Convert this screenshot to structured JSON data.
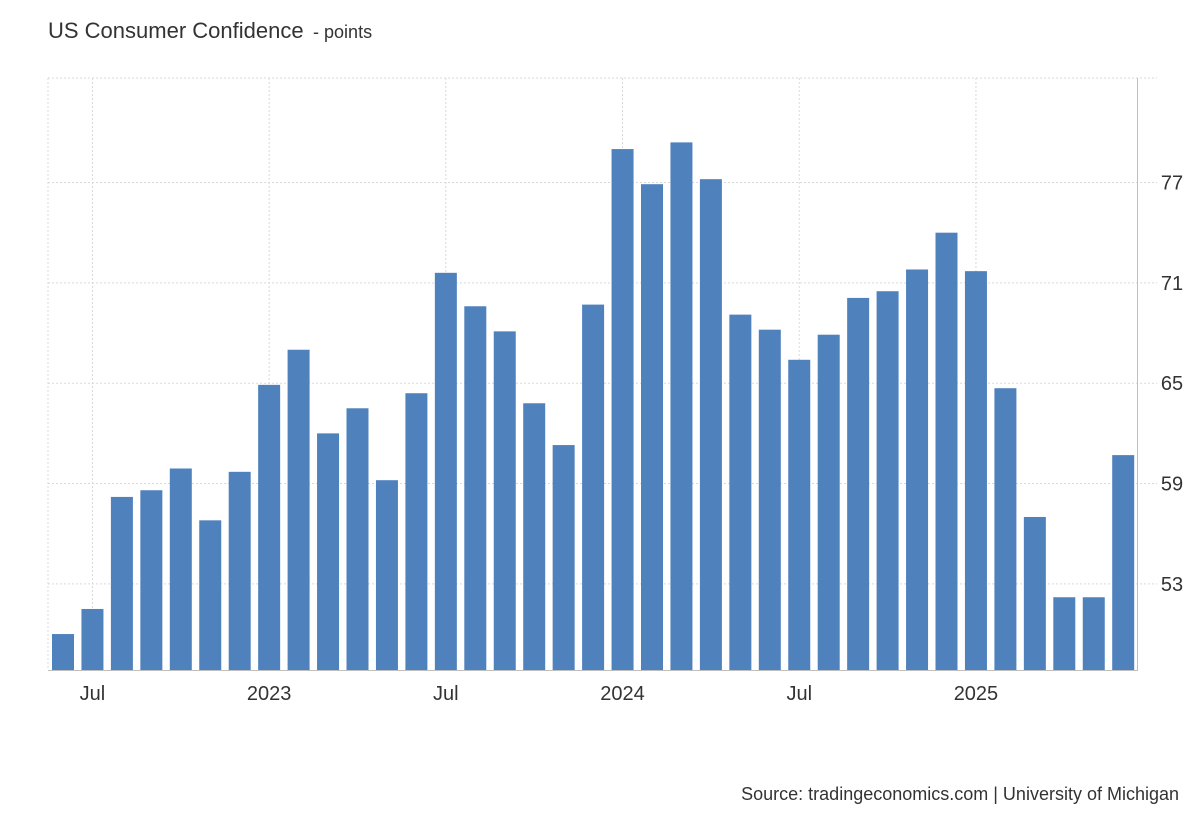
{
  "chart_data": {
    "type": "bar",
    "title": "US Consumer Confidence",
    "subtitle": "points",
    "source": "Source: tradingeconomics.com | University of Michigan",
    "ylim": [
      47.85,
      83.25
    ],
    "y_axis_position": "right",
    "y_ticks": [
      53,
      59,
      65,
      71,
      77
    ],
    "y_tick_labels": [
      "53",
      "59",
      "65",
      "71",
      "77"
    ],
    "grid": true,
    "x_ticks": [
      {
        "label": "Jul",
        "index": 1
      },
      {
        "label": "2023",
        "index": 7
      },
      {
        "label": "Jul",
        "index": 13
      },
      {
        "label": "2024",
        "index": 19
      },
      {
        "label": "Jul",
        "index": 25
      },
      {
        "label": "2025",
        "index": 31
      }
    ],
    "categories": [
      "Jun 2022",
      "Jul 2022",
      "Aug 2022",
      "Sep 2022",
      "Oct 2022",
      "Nov 2022",
      "Dec 2022",
      "Jan 2023",
      "Feb 2023",
      "Mar 2023",
      "Apr 2023",
      "May 2023",
      "Jun 2023",
      "Jul 2023",
      "Aug 2023",
      "Sep 2023",
      "Oct 2023",
      "Nov 2023",
      "Dec 2023",
      "Jan 2024",
      "Feb 2024",
      "Mar 2024",
      "Apr 2024",
      "May 2024",
      "Jun 2024",
      "Jul 2024",
      "Aug 2024",
      "Sep 2024",
      "Oct 2024",
      "Nov 2024",
      "Dec 2024",
      "Jan 2025",
      "Feb 2025",
      "Mar 2025",
      "Apr 2025",
      "May 2025",
      "Jun 2025"
    ],
    "values": [
      50.0,
      51.5,
      58.2,
      58.6,
      59.9,
      56.8,
      59.7,
      64.9,
      67.0,
      62.0,
      63.5,
      59.2,
      64.4,
      71.6,
      69.6,
      68.1,
      63.8,
      61.3,
      69.7,
      79.0,
      76.9,
      79.4,
      77.2,
      69.1,
      68.2,
      66.4,
      67.9,
      70.1,
      70.5,
      71.8,
      74.0,
      71.7,
      64.7,
      57.0,
      52.2,
      52.2,
      60.7
    ],
    "bar_color": "#4f81bd"
  }
}
